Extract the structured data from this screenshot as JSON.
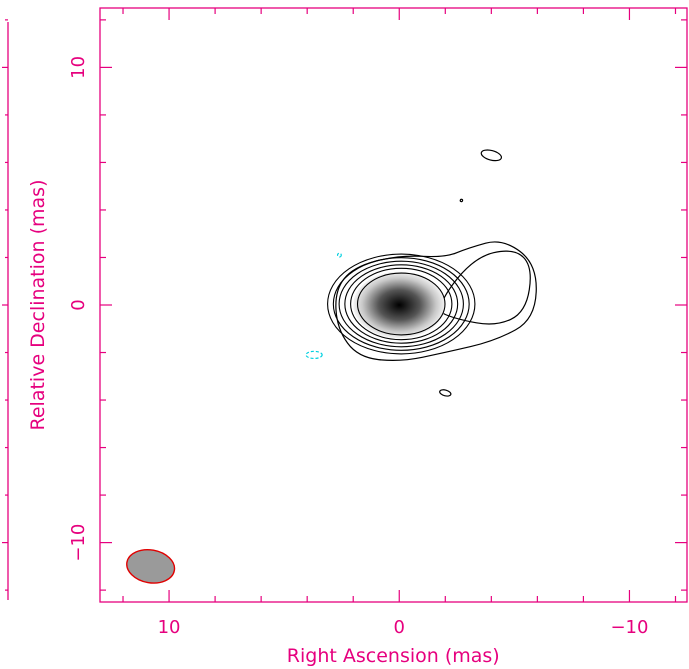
{
  "chart_data": {
    "type": "contour",
    "xlabel": "Right Ascension  (mas)",
    "ylabel": "Relative Declination  (mas)",
    "xlim": [
      13,
      -12.5
    ],
    "ylim": [
      -12.5,
      12.5
    ],
    "x_ticks": [
      10,
      0,
      -10
    ],
    "x_tick_labels": [
      "10",
      "0",
      "−10"
    ],
    "y_ticks": [
      10,
      0,
      -10
    ],
    "y_tick_labels": [
      "10",
      "0",
      "−10"
    ],
    "axis_color": "#e6007e",
    "contour_color": "#000000",
    "negative_contour_color": "#00d0e0",
    "beam": {
      "x": 10.8,
      "y": -11.0,
      "major_mas": 1.9,
      "minor_mas": 1.2,
      "fill": "#9a9a9a",
      "edge": "#e00000"
    },
    "core": {
      "x": 0.0,
      "y": 0.0
    },
    "core_contour_radii_mas": [
      [
        1.9,
        1.3
      ],
      [
        2.2,
        1.5
      ],
      [
        2.45,
        1.65
      ],
      [
        2.7,
        1.8
      ],
      [
        2.95,
        1.95
      ],
      [
        3.2,
        2.1
      ]
    ],
    "jet_contours": [
      [
        [
          -3.2,
          2.0
        ],
        [
          -5.0,
          2.4
        ],
        [
          -5.8,
          1.6
        ],
        [
          -5.5,
          -0.3
        ],
        [
          -4.2,
          -0.9
        ],
        [
          -2.5,
          -0.6
        ],
        [
          -1.5,
          -0.2
        ]
      ],
      [
        [
          -3.0,
          2.4
        ],
        [
          -4.5,
          2.8
        ],
        [
          -6.0,
          1.7
        ],
        [
          -5.9,
          -0.6
        ],
        [
          -4.2,
          -1.5
        ],
        [
          -2.0,
          -2.0
        ],
        [
          0.0,
          -2.4
        ],
        [
          1.8,
          -2.2
        ],
        [
          2.7,
          -1.0
        ],
        [
          2.8,
          0.6
        ],
        [
          2.0,
          1.6
        ],
        [
          0.0,
          2.1
        ],
        [
          -2.0,
          2.0
        ]
      ]
    ],
    "small_positive_contours": [
      {
        "x": -4.0,
        "y": 6.3,
        "rx": 0.45,
        "ry": 0.2
      },
      {
        "x": -2.0,
        "y": -3.7,
        "rx": 0.25,
        "ry": 0.12
      },
      {
        "x": -2.7,
        "y": 4.4,
        "rx": 0.05,
        "ry": 0.05
      }
    ],
    "small_negative_contours": [
      {
        "x": 3.7,
        "y": -2.1,
        "rx": 0.35,
        "ry": 0.15
      },
      {
        "x": 2.6,
        "y": 2.1,
        "rx": 0.08,
        "ry": 0.08
      }
    ]
  }
}
